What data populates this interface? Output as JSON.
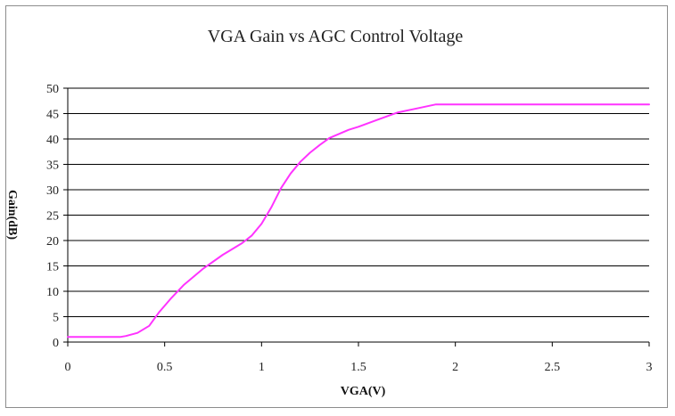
{
  "chart_data": {
    "type": "line",
    "title": "VGA Gain vs AGC Control Voltage",
    "xlabel": "VGA(V)",
    "ylabel": "Gain(dB)",
    "xlim": [
      0,
      3
    ],
    "ylim": [
      0,
      50
    ],
    "x_ticks": [
      "0",
      "0.5",
      "1",
      "1.5",
      "2",
      "2.5",
      "3"
    ],
    "y_ticks": [
      "0",
      "5",
      "10",
      "15",
      "20",
      "25",
      "30",
      "35",
      "40",
      "45",
      "50"
    ],
    "grid": "horizontal",
    "legend": "none",
    "series": [
      {
        "color": "#ff33ff",
        "x": [
          0,
          0.1,
          0.2,
          0.27,
          0.3,
          0.36,
          0.42,
          0.47,
          0.53,
          0.6,
          0.7,
          0.8,
          0.9,
          0.95,
          1.0,
          1.05,
          1.1,
          1.15,
          1.2,
          1.25,
          1.3,
          1.35,
          1.4,
          1.45,
          1.5,
          1.6,
          1.7,
          1.8,
          1.9,
          2.0,
          2.5,
          3.0
        ],
        "y": [
          1,
          1,
          1,
          1,
          1.2,
          1.8,
          3.2,
          5.8,
          8.5,
          11.3,
          14.5,
          17.2,
          19.5,
          21,
          23.3,
          26.5,
          30.3,
          33.2,
          35.5,
          37.3,
          38.8,
          40.2,
          41,
          41.8,
          42.4,
          43.8,
          45.2,
          46,
          46.8,
          46.8,
          46.8,
          46.8
        ]
      }
    ]
  }
}
